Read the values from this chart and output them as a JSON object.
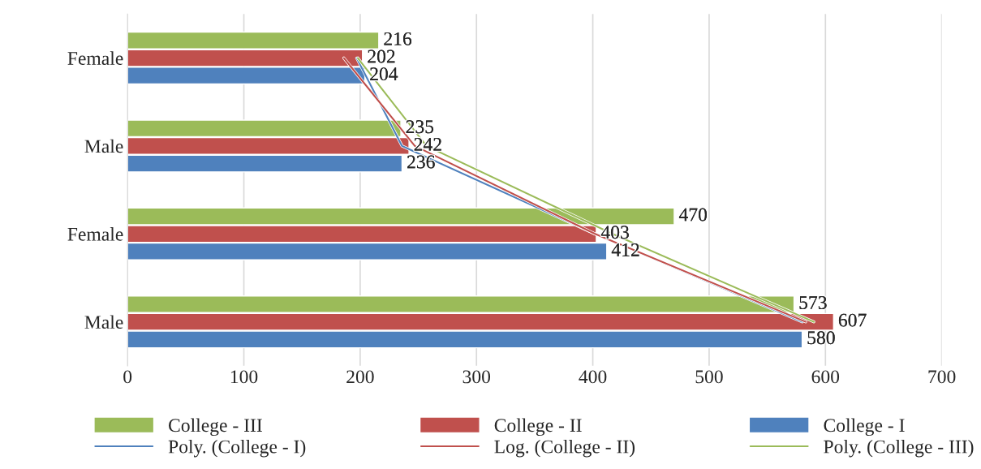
{
  "chart_data": {
    "type": "bar",
    "orientation": "horizontal",
    "categories": [
      "Female",
      "Male",
      "Female",
      "Male"
    ],
    "series": [
      {
        "name": "College - III",
        "color": "#9bbb59",
        "values": [
          216,
          235,
          470,
          573
        ],
        "value_labels": [
          "216",
          "235",
          "470",
          "573"
        ]
      },
      {
        "name": "College - II",
        "color": "#c0504d",
        "values": [
          202,
          242,
          403,
          607
        ],
        "value_labels": [
          "202",
          "242",
          "403",
          "607"
        ]
      },
      {
        "name": "College - I",
        "color": "#4f81bd",
        "values": [
          204,
          236,
          412,
          580
        ],
        "value_labels": [
          "204",
          "236",
          "412",
          "580"
        ]
      },
      {
        "name": "Poly. (College - I)",
        "type": "line",
        "color": "#4f81bd",
        "values": [
          197,
          236,
          402,
          580
        ]
      },
      {
        "name": "Log. (College - II)",
        "type": "line",
        "color": "#c0504d",
        "values": [
          186,
          247,
          402,
          583
        ]
      },
      {
        "name": "Poly. (College - III)",
        "type": "line",
        "color": "#9bbb59",
        "values": [
          198,
          257,
          417,
          590
        ]
      }
    ],
    "xlim": [
      0,
      700
    ],
    "xticks": [
      0,
      100,
      200,
      300,
      400,
      500,
      600,
      700
    ],
    "grid": "x",
    "legend": "bottom"
  }
}
